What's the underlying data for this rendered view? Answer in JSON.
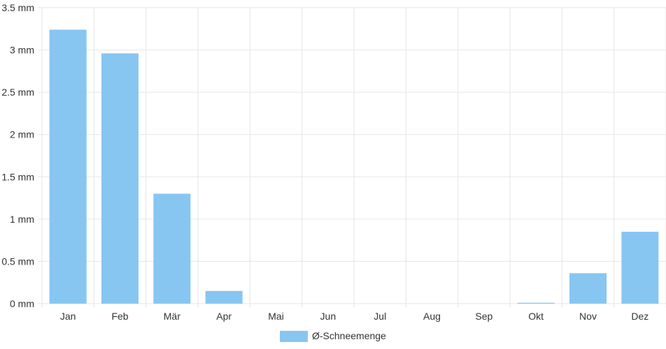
{
  "chart_data": {
    "type": "bar",
    "categories": [
      "Jan",
      "Feb",
      "Mär",
      "Apr",
      "Mai",
      "Jun",
      "Jul",
      "Aug",
      "Sep",
      "Okt",
      "Nov",
      "Dez"
    ],
    "series": [
      {
        "name": "Ø-Schneemenge",
        "values": [
          3.24,
          2.96,
          1.3,
          0.15,
          0,
          0,
          0,
          0,
          0,
          0.01,
          0.36,
          0.85
        ],
        "color": "#87c6f1"
      }
    ],
    "y_ticks": [
      "0 mm",
      "0.5 mm",
      "1 mm",
      "1.5 mm",
      "2 mm",
      "2.5 mm",
      "3 mm",
      "3.5 mm"
    ],
    "ylim": [
      0,
      3.5
    ],
    "y_unit": "mm",
    "grid": true,
    "legend_position": "bottom-center",
    "colors": {
      "grid": "#e6e6e6",
      "axis_text": "#333333"
    }
  }
}
